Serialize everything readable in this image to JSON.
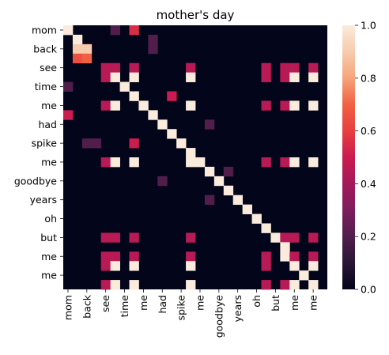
{
  "chart_data": {
    "type": "heatmap",
    "title": "mother's day",
    "tokens": [
      "mom",
      "back",
      "see",
      "time",
      "me",
      "had",
      "spike",
      "me",
      "goodbye",
      "years",
      "oh",
      "but",
      "me",
      "me"
    ],
    "x_tokens": [
      "mom",
      "",
      "back",
      "",
      "see",
      "",
      "time",
      "",
      "me",
      "",
      "had",
      "",
      "spike",
      "",
      "me",
      "",
      "goodbye",
      "",
      "years",
      "",
      "oh",
      "",
      "but",
      "",
      "me",
      "",
      "me"
    ],
    "y_tokens": [
      "mom",
      "",
      "back",
      "",
      "see",
      "",
      "time",
      "",
      "me",
      "",
      "had",
      "",
      "spike",
      "",
      "me",
      "",
      "goodbye",
      "",
      "years",
      "",
      "oh",
      "",
      "but",
      "",
      "me",
      "",
      "me"
    ],
    "x_tick_labels": [
      "mom",
      "back",
      "see",
      "time",
      "me",
      "had",
      "spike",
      "me",
      "goodbye",
      "years",
      "oh",
      "but",
      "me",
      "me"
    ],
    "y_tick_labels": [
      "mom",
      "back",
      "see",
      "time",
      "me",
      "had",
      "spike",
      "me",
      "goodbye",
      "years",
      "oh",
      "but",
      "me",
      "me"
    ],
    "colorbar": {
      "min": 0.0,
      "max": 1.0,
      "ticks": [
        "0.0",
        "0.2",
        "0.4",
        "0.6",
        "0.8",
        "1.0"
      ]
    },
    "colormap": [
      "#03051a",
      "#2a1636",
      "#511e4c",
      "#7e1e5c",
      "#a3195b",
      "#cb1b4f",
      "#e83f3f",
      "#f06043",
      "#f6a47b",
      "#f7cbad",
      "#faebdd"
    ],
    "cells": [
      [
        0,
        0,
        1.0
      ],
      [
        0,
        5,
        0.2
      ],
      [
        0,
        7,
        0.55
      ],
      [
        1,
        1,
        1.0
      ],
      [
        1,
        9,
        0.2
      ],
      [
        2,
        1,
        0.9
      ],
      [
        2,
        2,
        0.9
      ],
      [
        2,
        9,
        0.2
      ],
      [
        3,
        1,
        0.65
      ],
      [
        3,
        2,
        0.7
      ],
      [
        4,
        4,
        0.45
      ],
      [
        4,
        5,
        0.45
      ],
      [
        4,
        7,
        0.45
      ],
      [
        4,
        13,
        0.45
      ],
      [
        4,
        21,
        0.45
      ],
      [
        4,
        23,
        0.45
      ],
      [
        4,
        24,
        0.45
      ],
      [
        4,
        26,
        0.45
      ],
      [
        5,
        4,
        0.45
      ],
      [
        5,
        5,
        1.0
      ],
      [
        5,
        7,
        1.0
      ],
      [
        5,
        13,
        1.0
      ],
      [
        5,
        21,
        0.45
      ],
      [
        5,
        23,
        0.45
      ],
      [
        5,
        24,
        1.0
      ],
      [
        5,
        26,
        1.0
      ],
      [
        6,
        0,
        0.2
      ],
      [
        6,
        6,
        1.0
      ],
      [
        7,
        7,
        1.0
      ],
      [
        7,
        11,
        0.5
      ],
      [
        8,
        4,
        0.45
      ],
      [
        8,
        5,
        1.0
      ],
      [
        8,
        8,
        1.0
      ],
      [
        8,
        13,
        1.0
      ],
      [
        8,
        21,
        0.45
      ],
      [
        8,
        23,
        0.45
      ],
      [
        8,
        24,
        1.0
      ],
      [
        8,
        26,
        1.0
      ],
      [
        9,
        0,
        0.5
      ],
      [
        9,
        9,
        1.0
      ],
      [
        10,
        10,
        1.0
      ],
      [
        10,
        15,
        0.2
      ],
      [
        11,
        11,
        1.0
      ],
      [
        12,
        2,
        0.2
      ],
      [
        12,
        3,
        0.2
      ],
      [
        12,
        7,
        0.5
      ],
      [
        12,
        12,
        1.0
      ],
      [
        13,
        13,
        1.0
      ],
      [
        14,
        4,
        0.45
      ],
      [
        14,
        5,
        1.0
      ],
      [
        14,
        7,
        1.0
      ],
      [
        14,
        13,
        1.0
      ],
      [
        14,
        14,
        1.0
      ],
      [
        14,
        21,
        0.45
      ],
      [
        14,
        23,
        0.45
      ],
      [
        14,
        24,
        1.0
      ],
      [
        14,
        26,
        1.0
      ],
      [
        15,
        15,
        1.0
      ],
      [
        15,
        17,
        0.2
      ],
      [
        16,
        10,
        0.2
      ],
      [
        16,
        16,
        1.0
      ],
      [
        17,
        17,
        1.0
      ],
      [
        18,
        15,
        0.2
      ],
      [
        18,
        18,
        1.0
      ],
      [
        19,
        19,
        1.0
      ],
      [
        20,
        20,
        1.0
      ],
      [
        21,
        21,
        1.0
      ],
      [
        22,
        4,
        0.45
      ],
      [
        22,
        5,
        0.45
      ],
      [
        22,
        7,
        0.45
      ],
      [
        22,
        13,
        0.45
      ],
      [
        22,
        22,
        1.0
      ],
      [
        22,
        23,
        0.45
      ],
      [
        22,
        24,
        0.45
      ],
      [
        22,
        26,
        0.45
      ],
      [
        23,
        23,
        1.0
      ],
      [
        24,
        4,
        0.45
      ],
      [
        24,
        5,
        0.45
      ],
      [
        24,
        7,
        0.45
      ],
      [
        24,
        13,
        0.45
      ],
      [
        24,
        21,
        0.45
      ],
      [
        24,
        23,
        1.0
      ],
      [
        24,
        24,
        0.45
      ],
      [
        24,
        26,
        0.45
      ],
      [
        25,
        4,
        0.45
      ],
      [
        25,
        5,
        1.0
      ],
      [
        25,
        7,
        1.0
      ],
      [
        25,
        13,
        1.0
      ],
      [
        25,
        21,
        0.45
      ],
      [
        25,
        24,
        1.0
      ],
      [
        25,
        26,
        1.0
      ],
      [
        26,
        25,
        1.0
      ],
      [
        27,
        4,
        0.45
      ],
      [
        27,
        5,
        1.0
      ],
      [
        27,
        7,
        1.0
      ],
      [
        27,
        13,
        1.0
      ],
      [
        27,
        21,
        0.45
      ],
      [
        27,
        23,
        0.45
      ],
      [
        27,
        24,
        1.0
      ],
      [
        27,
        26,
        1.0
      ]
    ],
    "n_rows": 28,
    "n_cols": 28
  }
}
